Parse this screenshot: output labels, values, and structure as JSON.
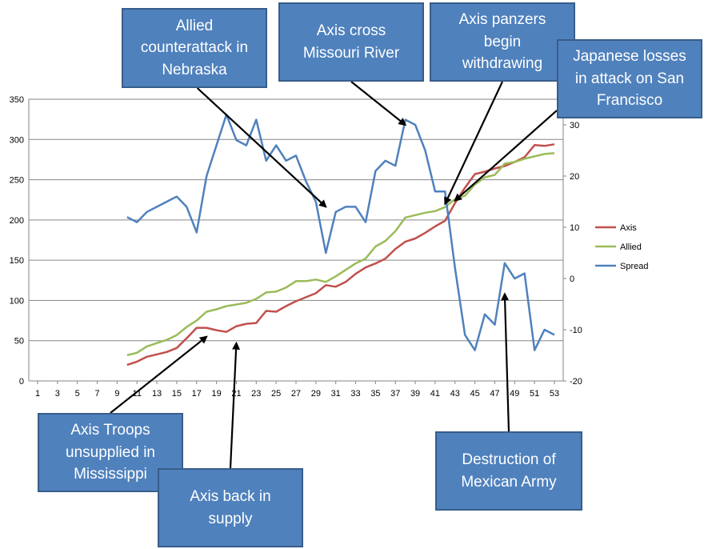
{
  "chart_data": {
    "type": "line",
    "title": "",
    "xlabel": "",
    "ylabel": "",
    "x_ticks": [
      1,
      3,
      5,
      7,
      9,
      11,
      13,
      15,
      17,
      19,
      21,
      23,
      25,
      27,
      29,
      31,
      33,
      35,
      37,
      39,
      41,
      43,
      45,
      47,
      49,
      51,
      53
    ],
    "xlim": [
      1,
      53
    ],
    "ylim": [
      0,
      350
    ],
    "y2lim": [
      -20,
      35
    ],
    "y_ticks": [
      0,
      50,
      100,
      150,
      200,
      250,
      300,
      350
    ],
    "y2_ticks": [
      -20,
      -10,
      0,
      10,
      20,
      30
    ],
    "grid": "horizontal",
    "legend_position": "right",
    "series": [
      {
        "name": "Axis",
        "color": "#c0504d",
        "axis": "left",
        "x": [
          10,
          11,
          12,
          13,
          14,
          15,
          16,
          17,
          18,
          19,
          20,
          21,
          22,
          23,
          24,
          25,
          26,
          27,
          28,
          29,
          30,
          31,
          32,
          33,
          34,
          35,
          36,
          37,
          38,
          39,
          40,
          41,
          42,
          43,
          44,
          45,
          46,
          47,
          48,
          49,
          50,
          51,
          52,
          53
        ],
        "values": [
          20,
          24,
          30,
          33,
          36,
          41,
          53,
          66,
          66,
          63,
          61,
          68,
          71,
          72,
          87,
          86,
          93,
          99,
          104,
          109,
          119,
          117,
          123,
          133,
          141,
          146,
          152,
          164,
          173,
          177,
          184,
          192,
          199,
          221,
          240,
          257,
          260,
          264,
          267,
          272,
          278,
          293,
          292,
          294
        ]
      },
      {
        "name": "Allied",
        "color": "#9bbb59",
        "axis": "left",
        "x": [
          10,
          11,
          12,
          13,
          14,
          15,
          16,
          17,
          18,
          19,
          20,
          21,
          22,
          23,
          24,
          25,
          26,
          27,
          28,
          29,
          30,
          31,
          32,
          33,
          34,
          35,
          36,
          37,
          38,
          39,
          40,
          41,
          42,
          43,
          44,
          45,
          46,
          47,
          48,
          49,
          50,
          51,
          52,
          53
        ],
        "values": [
          32,
          35,
          43,
          47,
          51,
          57,
          67,
          75,
          86,
          89,
          93,
          95,
          97,
          102,
          110,
          111,
          116,
          124,
          124,
          126,
          123,
          130,
          138,
          146,
          152,
          167,
          174,
          186,
          203,
          206,
          209,
          211,
          216,
          226,
          230,
          244,
          253,
          256,
          270,
          272,
          276,
          279,
          282,
          283
        ]
      },
      {
        "name": "Spread",
        "color": "#4f81bd",
        "axis": "right",
        "x": [
          10,
          11,
          12,
          13,
          14,
          15,
          16,
          17,
          18,
          19,
          20,
          21,
          22,
          23,
          24,
          25,
          26,
          27,
          28,
          29,
          30,
          31,
          32,
          33,
          34,
          35,
          36,
          37,
          38,
          39,
          40,
          41,
          42,
          43,
          44,
          45,
          46,
          47,
          48,
          49,
          50,
          51,
          52,
          53
        ],
        "values": [
          12,
          11,
          13,
          14,
          15,
          16,
          14,
          9,
          20,
          26,
          32,
          27,
          26,
          31,
          23,
          26,
          23,
          24,
          19,
          15,
          5,
          13,
          14,
          14,
          11,
          21,
          23,
          22,
          31,
          30,
          25,
          17,
          17,
          2,
          -11,
          -14,
          -7,
          -9,
          3,
          0,
          1,
          -14,
          -10,
          -11
        ]
      }
    ],
    "annotations": [
      {
        "text": "Allied counterattack in Nebraska",
        "x": 30,
        "axis": "right",
        "y": 14
      },
      {
        "text": "Axis cross Missouri River",
        "x": 38,
        "axis": "right",
        "y": 30
      },
      {
        "text": "Axis panzers begin withdrawing",
        "x": 42,
        "axis": "left",
        "y": 220
      },
      {
        "text": "Japanese losses in attack on San Francisco",
        "x": 43,
        "axis": "left",
        "y": 224
      },
      {
        "text": "Axis Troops unsupplied in Mississippi",
        "x": 18,
        "axis": "left",
        "y": 55
      },
      {
        "text": "Axis back in supply",
        "x": 21,
        "axis": "left",
        "y": 47
      },
      {
        "text": "Destruction of Mexican Army",
        "x": 48,
        "axis": "right",
        "y": -3
      }
    ]
  },
  "callouts": [
    {
      "text": "Allied\ncounterattack in\nNebraska"
    },
    {
      "text": "Axis cross\nMissouri River"
    },
    {
      "text": "Axis panzers\nbegin\nwithdrawing"
    },
    {
      "text": "Japanese losses\nin attack on San\nFrancisco"
    },
    {
      "text": "Axis Troops\nunsupplied in\nMississippi"
    },
    {
      "text": "Axis back in\nsupply"
    },
    {
      "text": "Destruction of\nMexican Army"
    }
  ]
}
